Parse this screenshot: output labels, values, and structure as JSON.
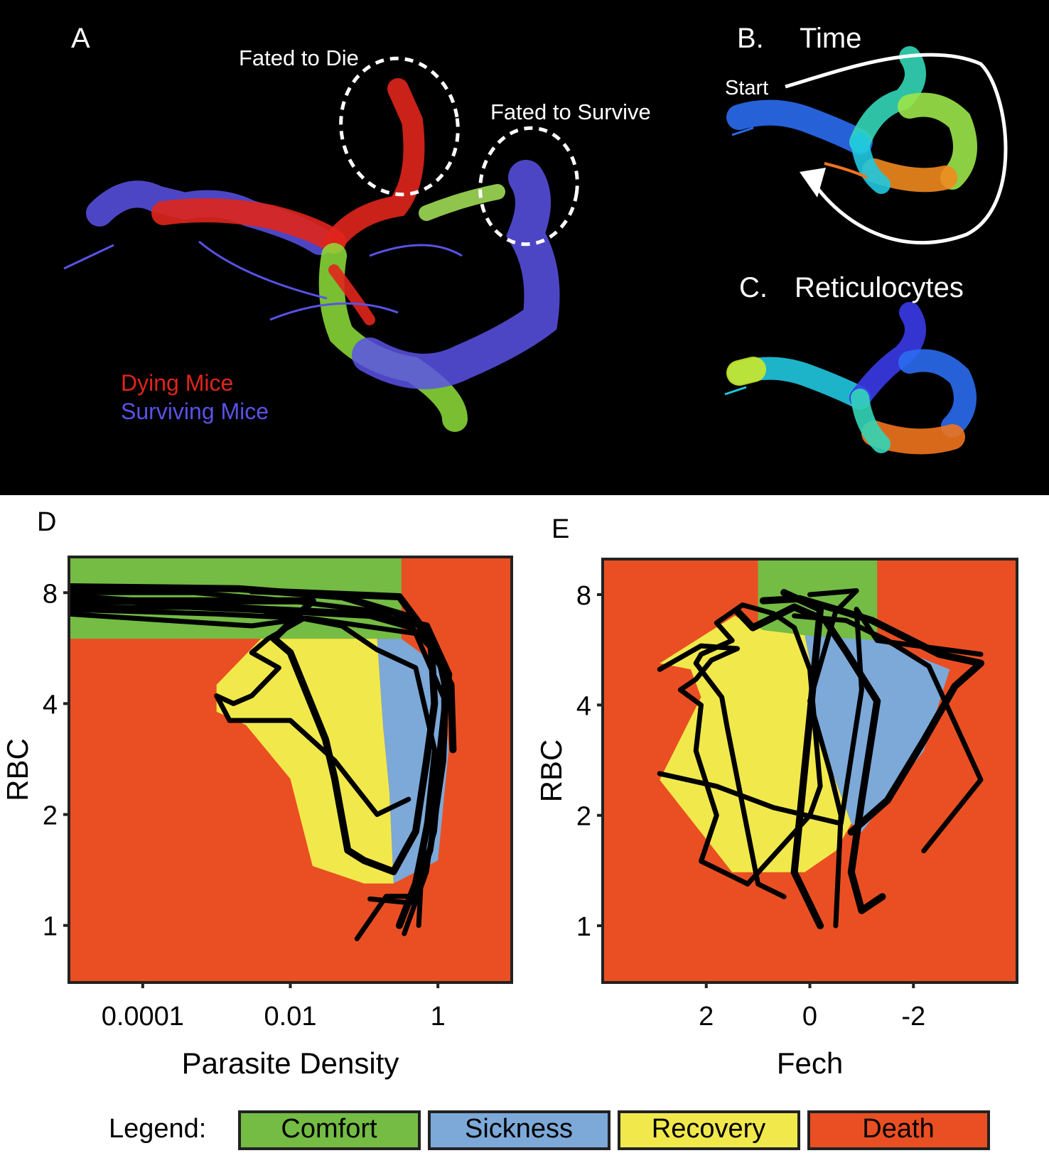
{
  "panels": {
    "A": {
      "letter": "A",
      "annotations": [
        "Fated to Die",
        "Fated to Survive"
      ],
      "legend": [
        {
          "label": "Dying Mice",
          "color": "#e0251c"
        },
        {
          "label": "Surviving Mice",
          "color": "#5a52e6"
        }
      ]
    },
    "B": {
      "letter": "B.",
      "title": "Time",
      "start_label": "Start"
    },
    "C": {
      "letter": "C.",
      "title": "Reticulocytes"
    },
    "D": {
      "letter": "D"
    },
    "E": {
      "letter": "E"
    }
  },
  "legend": {
    "title": "Legend:",
    "items": [
      {
        "label": "Comfort",
        "color": "#74bc44"
      },
      {
        "label": "Sickness",
        "color": "#7ca9d8"
      },
      {
        "label": "Recovery",
        "color": "#f1e94b"
      },
      {
        "label": "Death",
        "color": "#ea4f23"
      }
    ]
  },
  "chart_data": [
    {
      "panel": "D",
      "type": "line",
      "xlabel": "Parasite Density",
      "ylabel": "RBC",
      "x_scale": "log",
      "y_scale": "log",
      "xlim": [
        1e-05,
        10
      ],
      "ylim": [
        0.7,
        10
      ],
      "x_ticks": [
        {
          "value": 0.0001,
          "label": "0.0001"
        },
        {
          "value": 0.01,
          "label": "0.01"
        },
        {
          "value": 1,
          "label": "1"
        }
      ],
      "y_ticks": [
        {
          "value": 1,
          "label": "1"
        },
        {
          "value": 2,
          "label": "2"
        },
        {
          "value": 4,
          "label": "4"
        },
        {
          "value": 8,
          "label": "8"
        }
      ],
      "regions": [
        {
          "name": "Comfort",
          "color": "#74bc44",
          "polygon": [
            [
              1e-05,
              10
            ],
            [
              0.32,
              10
            ],
            [
              0.32,
              6
            ],
            [
              1e-05,
              6
            ]
          ]
        },
        {
          "name": "Sickness",
          "color": "#7ca9d8",
          "polygon": [
            [
              0.15,
              6
            ],
            [
              0.32,
              6
            ],
            [
              1.1,
              5
            ],
            [
              1.4,
              3
            ],
            [
              1.0,
              1.5
            ],
            [
              0.25,
              1.3
            ],
            [
              0.22,
              2.3
            ],
            [
              0.18,
              3.5
            ]
          ]
        },
        {
          "name": "Recovery",
          "color": "#f1e94b",
          "polygon": [
            [
              0.004,
              6
            ],
            [
              0.15,
              6
            ],
            [
              0.18,
              3.5
            ],
            [
              0.22,
              2.3
            ],
            [
              0.25,
              1.3
            ],
            [
              0.1,
              1.3
            ],
            [
              0.02,
              1.45
            ],
            [
              0.01,
              2.5
            ],
            [
              0.0025,
              3.5
            ],
            [
              0.001,
              3.8
            ],
            [
              0.001,
              4.5
            ]
          ]
        }
      ],
      "series": [
        {
          "values": [
            [
              1e-05,
              7.8
            ],
            [
              0.0005,
              7.4
            ],
            [
              0.005,
              7.2
            ],
            [
              0.1,
              7.0
            ],
            [
              0.7,
              6.5
            ],
            [
              1.4,
              4.8
            ],
            [
              1.0,
              2.6
            ],
            [
              0.5,
              1.3
            ],
            [
              0.3,
              1.0
            ]
          ]
        },
        {
          "values": [
            [
              1e-05,
              8.0
            ],
            [
              0.0005,
              8.0
            ],
            [
              0.01,
              7.6
            ],
            [
              0.3,
              7.0
            ],
            [
              1.2,
              5.2
            ],
            [
              1.2,
              3.0
            ],
            [
              0.7,
              1.4
            ],
            [
              0.35,
              0.95
            ]
          ]
        },
        {
          "values": [
            [
              1e-05,
              7.2
            ],
            [
              0.001,
              7.0
            ],
            [
              0.02,
              6.8
            ],
            [
              0.5,
              6.2
            ],
            [
              1.3,
              4.0
            ],
            [
              0.9,
              1.8
            ],
            [
              0.5,
              1.2
            ],
            [
              0.2,
              1.2
            ],
            [
              0.08,
              0.92
            ]
          ]
        },
        {
          "values": [
            [
              1e-05,
              8.3
            ],
            [
              0.002,
              8.2
            ],
            [
              0.05,
              7.8
            ],
            [
              0.5,
              6.8
            ],
            [
              1.5,
              4.5
            ],
            [
              1.6,
              3.0
            ]
          ]
        },
        {
          "values": [
            [
              1e-05,
              7.0
            ],
            [
              0.003,
              6.5
            ],
            [
              0.015,
              6.8
            ],
            [
              0.005,
              6.0
            ],
            [
              0.003,
              5.5
            ],
            [
              0.007,
              5.0
            ],
            [
              0.003,
              4.2
            ],
            [
              0.0017,
              4.0
            ],
            [
              0.001,
              4.2
            ],
            [
              0.0015,
              3.6
            ],
            [
              0.01,
              3.6
            ],
            [
              0.04,
              2.8
            ],
            [
              0.15,
              2.0
            ],
            [
              0.4,
              2.2
            ]
          ]
        },
        {
          "values": [
            [
              1e-05,
              7.5
            ],
            [
              0.0008,
              7.6
            ],
            [
              0.05,
              6.5
            ],
            [
              0.15,
              5.6
            ],
            [
              0.5,
              5.0
            ],
            [
              0.9,
              3.0
            ],
            [
              0.6,
              1.4
            ],
            [
              0.55,
              1.0
            ]
          ]
        },
        {
          "values": [
            [
              1e-05,
              7.6
            ],
            [
              0.02,
              7.6
            ],
            [
              0.006,
              6.0
            ],
            [
              0.01,
              5.5
            ],
            [
              0.03,
              3.2
            ],
            [
              0.04,
              2.5
            ],
            [
              0.06,
              1.6
            ],
            [
              0.1,
              1.5
            ],
            [
              0.25,
              1.4
            ],
            [
              0.5,
              1.8
            ],
            [
              0.7,
              2.8
            ],
            [
              0.9,
              4.0
            ],
            [
              0.8,
              6.0
            ],
            [
              0.3,
              7.8
            ],
            [
              0.003,
              8.1
            ]
          ]
        },
        {
          "values": [
            [
              1e-05,
              7.3
            ],
            [
              0.0004,
              7.3
            ],
            [
              0.008,
              7.1
            ],
            [
              0.12,
              6.9
            ],
            [
              0.45,
              6.4
            ],
            [
              1.0,
              5.4
            ],
            [
              1.3,
              4.2
            ],
            [
              1.2,
              2.8
            ],
            [
              0.8,
              1.6
            ],
            [
              0.45,
              1.15
            ],
            [
              0.12,
              1.18
            ]
          ]
        }
      ]
    },
    {
      "panel": "E",
      "type": "line",
      "xlabel": "Fech",
      "ylabel": "RBC",
      "x_reversed": true,
      "y_scale": "log",
      "xlim": [
        4,
        -4
      ],
      "ylim": [
        0.7,
        10
      ],
      "x_ticks": [
        {
          "value": 2,
          "label": "2"
        },
        {
          "value": 0,
          "label": "0"
        },
        {
          "value": -2,
          "label": "-2"
        }
      ],
      "y_ticks": [
        {
          "value": 1,
          "label": "1"
        },
        {
          "value": 2,
          "label": "2"
        },
        {
          "value": 4,
          "label": "4"
        },
        {
          "value": 8,
          "label": "8"
        }
      ],
      "regions": [
        {
          "name": "Comfort",
          "color": "#74bc44",
          "polygon": [
            [
              1.0,
              10
            ],
            [
              -1.3,
              10
            ],
            [
              -1.3,
              6
            ],
            [
              1.0,
              6
            ]
          ]
        },
        {
          "name": "Sickness",
          "color": "#7ca9d8",
          "polygon": [
            [
              0.1,
              6.2
            ],
            [
              -1.3,
              6.0
            ],
            [
              -2.7,
              5.0
            ],
            [
              -2.2,
              3.0
            ],
            [
              -1.0,
              1.8
            ],
            [
              -0.8,
              1.9
            ],
            [
              -0.4,
              2.7
            ],
            [
              -0.1,
              3.7
            ],
            [
              -0.1,
              4.5
            ]
          ]
        },
        {
          "name": "Recovery",
          "color": "#f1e94b",
          "polygon": [
            [
              1.45,
              7.0
            ],
            [
              0.9,
              6.4
            ],
            [
              0.1,
              6.2
            ],
            [
              -0.1,
              4.5
            ],
            [
              -0.1,
              3.7
            ],
            [
              -0.4,
              2.7
            ],
            [
              -0.8,
              1.9
            ],
            [
              -0.5,
              1.6
            ],
            [
              0.1,
              1.4
            ],
            [
              1.5,
              1.4
            ],
            [
              2.9,
              2.5
            ],
            [
              2.1,
              4.2
            ],
            [
              2.3,
              5.0
            ],
            [
              2.9,
              5.2
            ]
          ]
        }
      ],
      "series": [
        {
          "values": [
            [
              0.9,
              7.7
            ],
            [
              0.2,
              7.8
            ],
            [
              -0.5,
              7.3
            ],
            [
              -1.2,
              6.8
            ],
            [
              -2.5,
              5.5
            ],
            [
              -3.3,
              5.2
            ],
            [
              -2.8,
              4.5
            ],
            [
              -2.2,
              3.2
            ],
            [
              -1.5,
              2.2
            ],
            [
              -0.8,
              1.8
            ]
          ]
        },
        {
          "values": [
            [
              0.0,
              8.0
            ],
            [
              -0.9,
              8.2
            ],
            [
              -0.5,
              7.2
            ],
            [
              0.0,
              4.1
            ],
            [
              -0.4,
              2.6
            ],
            [
              -0.6,
              2.0
            ],
            [
              -0.5,
              1.0
            ]
          ]
        },
        {
          "values": [
            [
              0.3,
              7.0
            ],
            [
              -0.7,
              6.8
            ],
            [
              -1.5,
              6.0
            ],
            [
              -2.3,
              5.1
            ],
            [
              -3.3,
              2.5
            ],
            [
              -2.2,
              1.6
            ]
          ]
        },
        {
          "values": [
            [
              0.5,
              8.1
            ],
            [
              -0.2,
              7.3
            ],
            [
              0.0,
              3.7
            ],
            [
              0.3,
              1.4
            ],
            [
              -0.2,
              1.0
            ]
          ]
        },
        {
          "values": [
            [
              2.9,
              2.6
            ],
            [
              1.8,
              2.4
            ],
            [
              0.7,
              2.1
            ],
            [
              -0.6,
              1.9
            ],
            [
              -1.0,
              4.4
            ],
            [
              -0.9,
              7.3
            ],
            [
              -1.3,
              6.0
            ],
            [
              -3.3,
              5.5
            ]
          ]
        },
        {
          "values": [
            [
              2.9,
              5.0
            ],
            [
              2.1,
              5.8
            ],
            [
              1.4,
              5.7
            ],
            [
              1.9,
              5.3
            ],
            [
              2.2,
              4.7
            ],
            [
              2.5,
              4.4
            ],
            [
              2.1,
              4.0
            ],
            [
              2.2,
              3.0
            ],
            [
              1.8,
              2.0
            ],
            [
              2.1,
              1.5
            ],
            [
              1.2,
              1.3
            ],
            [
              0.8,
              1.5
            ],
            [
              0.0,
              2.0
            ],
            [
              -0.2,
              2.4
            ],
            [
              0.0,
              5.0
            ],
            [
              0.3,
              6.5
            ],
            [
              0.7,
              7.1
            ],
            [
              1.3,
              7.5
            ],
            [
              1.8,
              6.7
            ],
            [
              1.5,
              6.0
            ],
            [
              2.1,
              5.5
            ],
            [
              2.2,
              5.2
            ],
            [
              1.7,
              4.2
            ],
            [
              1.6,
              3.5
            ],
            [
              1.0,
              1.3
            ],
            [
              0.5,
              1.2
            ]
          ]
        },
        {
          "values": [
            [
              1.4,
              7.2
            ],
            [
              1.1,
              6.5
            ],
            [
              0.3,
              7.4
            ],
            [
              -0.3,
              6.8
            ],
            [
              -0.7,
              5.6
            ],
            [
              -1.3,
              4.1
            ],
            [
              -1.0,
              2.2
            ],
            [
              -0.8,
              1.4
            ],
            [
              -1.0,
              1.1
            ],
            [
              -1.4,
              1.2
            ]
          ]
        }
      ]
    }
  ]
}
